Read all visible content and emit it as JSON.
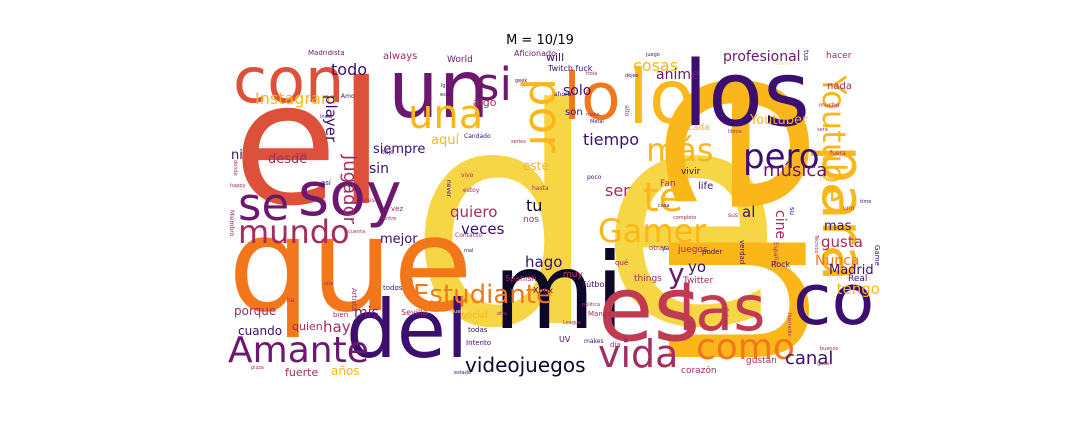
{
  "figure": {
    "title": "M = 10/19"
  },
  "palette": {
    "yellow": "#f6d645",
    "gold": "#fbb61a",
    "orange": "#f3771a",
    "red": "#dd513a",
    "crimson": "#c03a51",
    "plum": "#a32c61",
    "purple": "#6b186e",
    "indigo": "#3b0f70",
    "dark": "#0d0829",
    "pale": "#f9e4a1"
  },
  "words": [
    {
      "text": "de",
      "color": "yellow"
    },
    {
      "text": "en",
      "color": "gold"
    },
    {
      "text": "el",
      "color": "red"
    },
    {
      "text": "que",
      "color": "orange"
    },
    {
      "text": "mi",
      "color": "dark"
    },
    {
      "text": "es",
      "color": "crimson"
    },
    {
      "text": "los",
      "color": "indigo"
    },
    {
      "text": "del",
      "color": "indigo"
    },
    {
      "text": "co",
      "color": "indigo"
    },
    {
      "text": "un",
      "color": "purple"
    },
    {
      "text": "con",
      "color": "red"
    },
    {
      "text": "lo",
      "color": "gold"
    },
    {
      "text": "soy",
      "color": "purple"
    },
    {
      "text": "para",
      "color": "gold"
    },
    {
      "text": "las",
      "color": "crimson"
    },
    {
      "text": "se",
      "color": "purple"
    },
    {
      "text": "si",
      "color": "purple"
    },
    {
      "text": "lo",
      "color": "orange"
    },
    {
      "text": "una",
      "color": "gold"
    },
    {
      "text": "por",
      "color": "gold"
    },
    {
      "text": "Amante",
      "color": "purple"
    },
    {
      "text": "vida",
      "color": "plum"
    },
    {
      "text": "como",
      "color": "orange"
    },
    {
      "text": "te",
      "color": "gold"
    },
    {
      "text": "Youtube",
      "color": "gold"
    },
    {
      "text": "pero",
      "color": "indigo"
    },
    {
      "text": "mundo",
      "color": "plum"
    },
    {
      "text": "Estudiante",
      "color": "orange"
    },
    {
      "text": "Gamer",
      "color": "gold"
    },
    {
      "text": "más",
      "color": "gold"
    },
    {
      "text": "y",
      "color": "purple"
    },
    {
      "text": "videojuegos",
      "color": "dark"
    },
    {
      "text": "canal",
      "color": "indigo"
    },
    {
      "text": "música",
      "color": "purple"
    },
    {
      "text": "Instagram",
      "color": "gold"
    },
    {
      "text": "todo",
      "color": "indigo"
    },
    {
      "text": "cosas",
      "color": "gold"
    },
    {
      "text": "Jugador",
      "color": "plum"
    },
    {
      "text": "player",
      "color": "indigo"
    },
    {
      "text": "tiempo",
      "color": "indigo"
    },
    {
      "text": "solo",
      "color": "indigo"
    },
    {
      "text": "anime",
      "color": "purple"
    },
    {
      "text": "profesional",
      "color": "purple"
    },
    {
      "text": "tu",
      "color": "dark"
    },
    {
      "text": "ser",
      "color": "plum"
    },
    {
      "text": "quiero",
      "color": "plum"
    },
    {
      "text": "veces",
      "color": "indigo"
    },
    {
      "text": "hago",
      "color": "indigo"
    },
    {
      "text": "yo",
      "color": "indigo"
    },
    {
      "text": "tengo",
      "color": "gold"
    },
    {
      "text": "Nunca",
      "color": "orange"
    },
    {
      "text": "Madrid",
      "color": "indigo"
    },
    {
      "text": "gusta",
      "color": "plum"
    },
    {
      "text": "mas",
      "color": "indigo"
    },
    {
      "text": "al",
      "color": "indigo"
    },
    {
      "text": "cine",
      "color": "plum"
    },
    {
      "text": "hay",
      "color": "plum"
    },
    {
      "text": "mis",
      "color": "purple"
    },
    {
      "text": "sin",
      "color": "indigo"
    },
    {
      "text": "siempre",
      "color": "indigo"
    },
    {
      "text": "aquí",
      "color": "gold"
    },
    {
      "text": "ni",
      "color": "indigo"
    },
    {
      "text": "desde",
      "color": "plum"
    },
    {
      "text": "mejor",
      "color": "indigo"
    },
    {
      "text": "Youtuber",
      "color": "gold"
    },
    {
      "text": "porque",
      "color": "plum"
    },
    {
      "text": "cuando",
      "color": "indigo"
    },
    {
      "text": "quien",
      "color": "plum"
    },
    {
      "text": "fuerte",
      "color": "plum"
    },
    {
      "text": "años",
      "color": "gold"
    },
    {
      "text": "este",
      "color": "gold"
    },
    {
      "text": "Twitch fuck",
      "color": "indigo"
    },
    {
      "text": "always",
      "color": "plum"
    },
    {
      "text": "will",
      "color": "indigo"
    },
    {
      "text": "algo",
      "color": "plum"
    },
    {
      "text": "son",
      "color": "indigo"
    },
    {
      "text": "World",
      "color": "purple"
    },
    {
      "text": "Aficionado",
      "color": "purple"
    },
    {
      "text": "Madridista",
      "color": "purple"
    },
    {
      "text": "hacer",
      "color": "plum"
    },
    {
      "text": "nada",
      "color": "plum"
    },
    {
      "text": "Real",
      "color": "indigo"
    },
    {
      "text": "Game",
      "color": "indigo"
    },
    {
      "text": "Fan",
      "color": "plum"
    },
    {
      "text": "life",
      "color": "indigo"
    },
    {
      "text": "vivir",
      "color": "indigo"
    },
    {
      "text": "Twitter",
      "color": "plum"
    },
    {
      "text": "juegos",
      "color": "plum"
    },
    {
      "text": "things",
      "color": "plum"
    },
    {
      "text": "Xbox",
      "color": "indigo"
    },
    {
      "text": "nos",
      "color": "plum"
    },
    {
      "text": "muy",
      "color": "crimson"
    },
    {
      "text": "Spanish",
      "color": "plum"
    },
    {
      "text": "Fútbol",
      "color": "indigo"
    },
    {
      "text": "Social",
      "color": "gold"
    },
    {
      "text": "Sevilla",
      "color": "plum"
    },
    {
      "text": "Artista",
      "color": "plum"
    },
    {
      "text": "todos",
      "color": "indigo"
    },
    {
      "text": "bien",
      "color": "plum"
    },
    {
      "text": "Manga",
      "color": "plum"
    },
    {
      "text": "todas",
      "color": "indigo"
    },
    {
      "text": "Intento",
      "color": "indigo"
    },
    {
      "text": "UV",
      "color": "indigo"
    },
    {
      "text": "makes",
      "color": "indigo"
    },
    {
      "text": "día",
      "color": "plum"
    },
    {
      "text": "corazón",
      "color": "plum"
    },
    {
      "text": "gustan",
      "color": "plum"
    },
    {
      "text": "Futuro",
      "color": "plum"
    },
    {
      "text": "Rock",
      "color": "indigo"
    },
    {
      "text": "verdad",
      "color": "indigo"
    },
    {
      "text": "otras",
      "color": "plum"
    },
    {
      "text": "poder",
      "color": "indigo"
    },
    {
      "text": "España",
      "color": "plum"
    },
    {
      "text": "qué",
      "color": "plum"
    },
    {
      "text": "así",
      "color": "indigo"
    },
    {
      "text": "vez",
      "color": "plum"
    },
    {
      "text": "eres",
      "color": "plum"
    },
    {
      "text": "hasta",
      "color": "plum"
    },
    {
      "text": "poco",
      "color": "indigo"
    },
    {
      "text": "never",
      "color": "indigo"
    },
    {
      "text": "estoy",
      "color": "plum"
    },
    {
      "text": "vivo",
      "color": "plum"
    },
    {
      "text": "bajo",
      "color": "indigo"
    },
    {
      "text": "us",
      "color": "plum"
    },
    {
      "text": "amor",
      "color": "pale"
    },
    {
      "text": "time",
      "color": "indigo"
    },
    {
      "text": "uno",
      "color": "plum"
    },
    {
      "text": "fuera",
      "color": "plum"
    },
    {
      "text": "mucho",
      "color": "plum"
    },
    {
      "text": "será",
      "color": "plum"
    },
    {
      "text": "tus",
      "color": "indigo"
    },
    {
      "text": "Pokemon",
      "color": "pale"
    },
    {
      "text": "libros",
      "color": "plum"
    },
    {
      "text": "cada",
      "color": "gold"
    },
    {
      "text": "ahora",
      "color": "indigo"
    },
    {
      "text": "geek",
      "color": "indigo"
    },
    {
      "text": "Hola",
      "color": "plum"
    },
    {
      "text": "esto",
      "color": "indigo"
    },
    {
      "text": "insta",
      "color": "indigo"
    },
    {
      "text": "Amo",
      "color": "indigo"
    },
    {
      "text": "lg",
      "color": "indigo"
    },
    {
      "text": "make",
      "color": "plum"
    },
    {
      "text": "Candado",
      "color": "indigo"
    },
    {
      "text": "one",
      "color": "plum"
    },
    {
      "text": "ha",
      "color": "plum"
    },
    {
      "text": "pizza",
      "color": "plum"
    },
    {
      "text": "estado",
      "color": "indigo"
    },
    {
      "text": "gmail",
      "color": "plum"
    },
    {
      "text": "League",
      "color": "plum"
    },
    {
      "text": "política",
      "color": "plum"
    },
    {
      "text": "completo",
      "color": "plum"
    },
    {
      "text": "casa",
      "color": "indigo"
    },
    {
      "text": "su",
      "color": "indigo"
    },
    {
      "text": "sus",
      "color": "plum"
    },
    {
      "text": "happy",
      "color": "plum"
    },
    {
      "text": "donde",
      "color": "plum"
    },
    {
      "text": "Miembro",
      "color": "plum"
    },
    {
      "text": "cuenta",
      "color": "plum"
    },
    {
      "text": "Contacto",
      "color": "plum"
    },
    {
      "text": "mal",
      "color": "indigo"
    },
    {
      "text": "Metal",
      "color": "indigo"
    },
    {
      "text": "dejes",
      "color": "indigo"
    },
    {
      "text": "juego",
      "color": "indigo"
    },
    {
      "text": "alto",
      "color": "plum"
    },
    {
      "text": "series",
      "color": "plum"
    },
    {
      "text": "Técnico",
      "color": "plum"
    },
    {
      "text": "buenos",
      "color": "plum"
    },
    {
      "text": "entre",
      "color": "plum"
    },
    {
      "text": "otro",
      "color": "plum"
    },
    {
      "text": "ya",
      "color": "indigo"
    },
    {
      "text": "Ilustrador",
      "color": "plum"
    },
    {
      "text": "Sueño",
      "color": "pale"
    }
  ]
}
